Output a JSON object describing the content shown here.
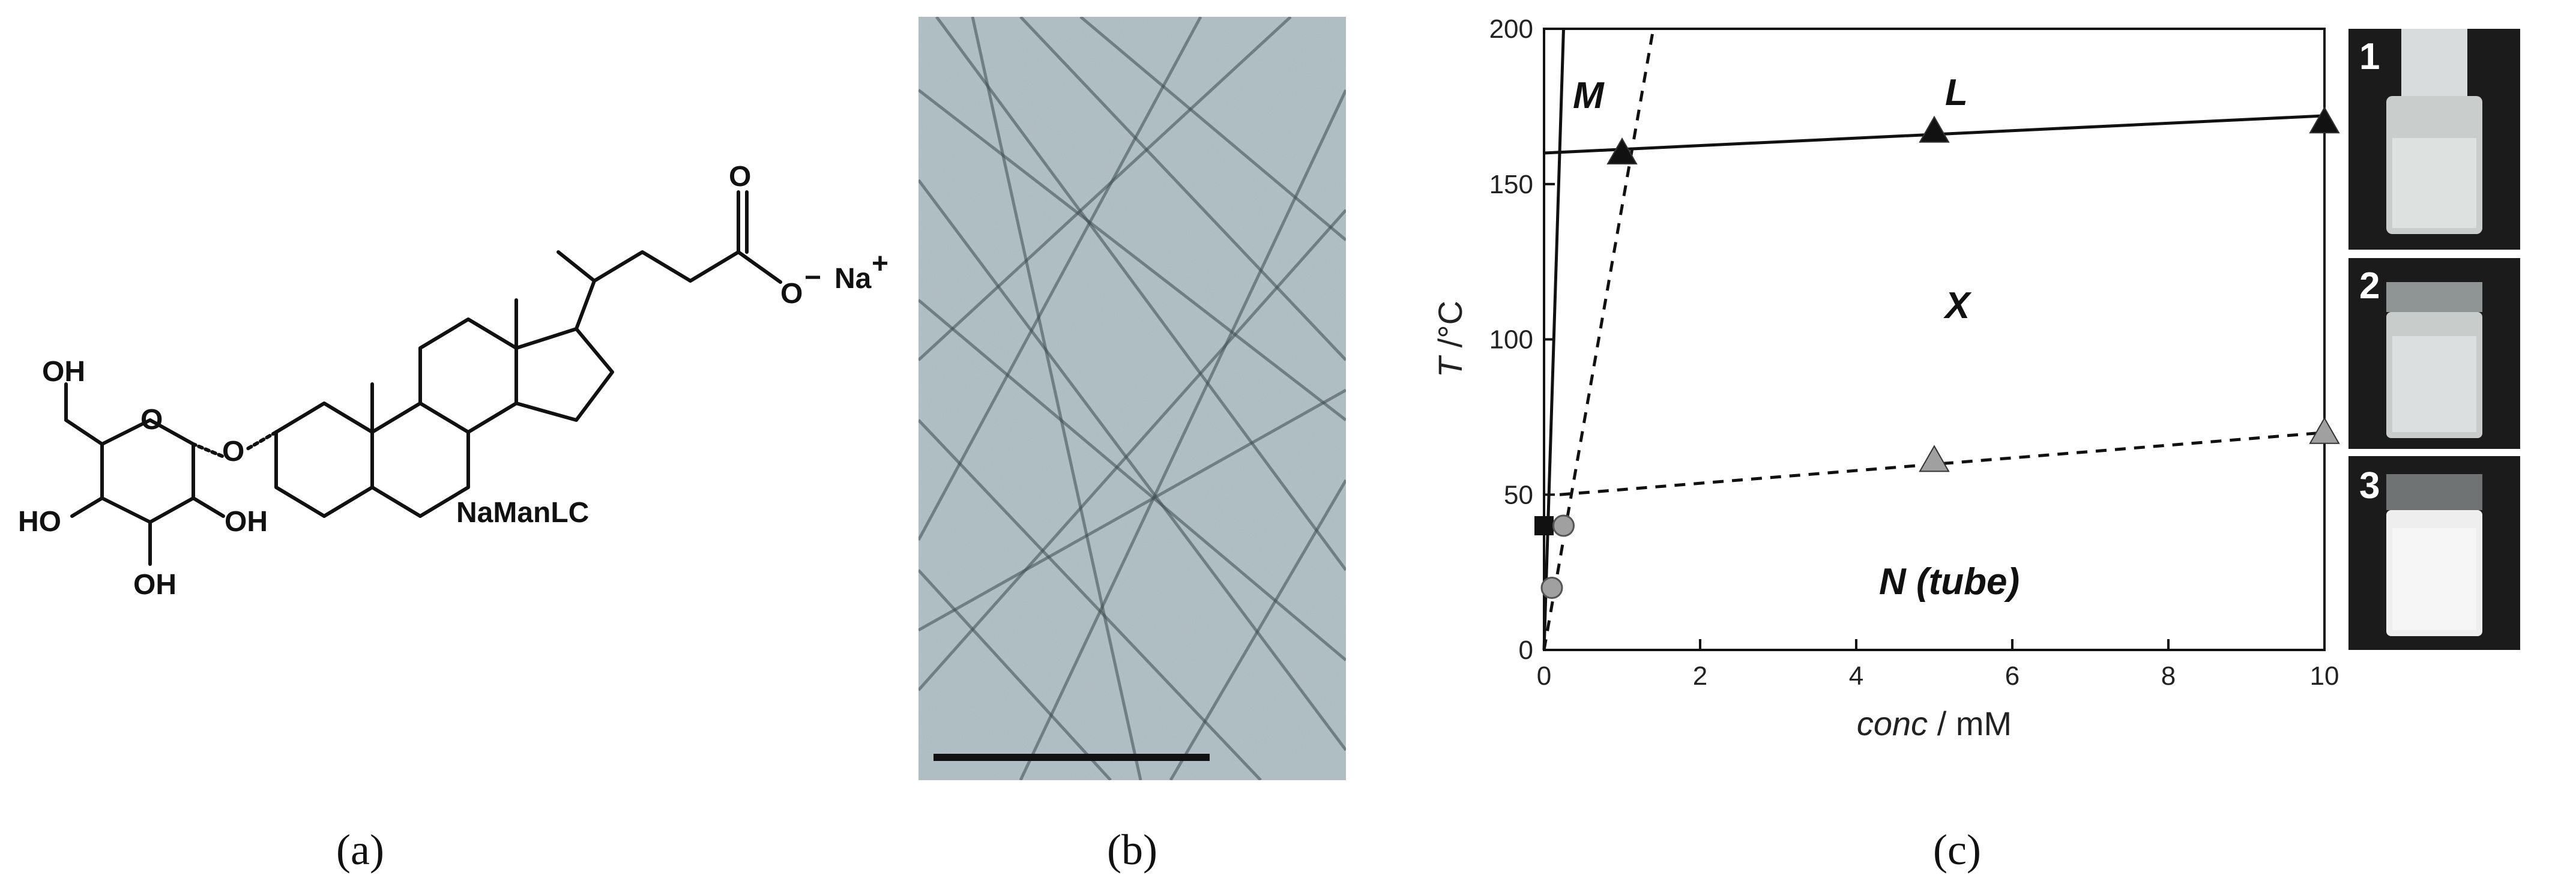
{
  "figure": {
    "panel_labels": {
      "a": "(a)",
      "b": "(b)",
      "c": "(c)"
    },
    "panel_a": {
      "compound_name": "NaManLC",
      "counter_ion": "Na",
      "counter_ion_charge": "+",
      "carboxylate_o": "O",
      "carboxylate_o_charge": "−",
      "carbonyl_o": "O",
      "ring_o": "O",
      "glycosidic_o": "O",
      "oh_top": "OH",
      "oh_left": "HO",
      "oh_right": "OH",
      "oh_bottom": "OH"
    },
    "panel_b": {
      "image_description_icon": "cryo-tem-image",
      "scale_bar": true
    },
    "panel_c": {
      "photos": [
        {
          "label": "1",
          "appearance": "clear-solution"
        },
        {
          "label": "2",
          "appearance": "clear-solution"
        },
        {
          "label": "3",
          "appearance": "turbid-white"
        }
      ]
    }
  },
  "chart_data": {
    "type": "scatter",
    "xlabel_italic": "conc",
    "xlabel_unit": " / mM",
    "ylabel_italic": "T",
    "ylabel_unit": " /°C",
    "xlim": [
      0,
      10
    ],
    "ylim": [
      0,
      200
    ],
    "xticks": [
      0,
      2,
      4,
      6,
      8,
      10
    ],
    "yticks": [
      0,
      50,
      100,
      150,
      200
    ],
    "phase_labels": {
      "M": "M",
      "L": "L",
      "X": "X",
      "N": "N (tube)"
    },
    "series": [
      {
        "marker": "black-triangle",
        "points": [
          {
            "x": 1,
            "y": 160
          },
          {
            "x": 5,
            "y": 167
          },
          {
            "x": 10,
            "y": 170
          }
        ]
      },
      {
        "marker": "gray-triangle",
        "points": [
          {
            "x": 5,
            "y": 61
          },
          {
            "x": 10,
            "y": 70
          }
        ]
      },
      {
        "marker": "black-square",
        "points": [
          {
            "x": 0,
            "y": 40
          }
        ]
      },
      {
        "marker": "gray-circle",
        "points": [
          {
            "x": 0.25,
            "y": 40
          },
          {
            "x": 0.1,
            "y": 20
          }
        ]
      }
    ],
    "lines": [
      {
        "style": "solid",
        "points": [
          {
            "x": 0,
            "y": 160
          },
          {
            "x": 10,
            "y": 172
          }
        ]
      },
      {
        "style": "solid",
        "points": [
          {
            "x": 0,
            "y": 0
          },
          {
            "x": 0.25,
            "y": 200
          }
        ]
      },
      {
        "style": "dashed",
        "points": [
          {
            "x": 0,
            "y": 0
          },
          {
            "x": 1.4,
            "y": 200
          }
        ]
      },
      {
        "style": "dashed",
        "points": [
          {
            "x": 0.2,
            "y": 50
          },
          {
            "x": 10,
            "y": 70
          }
        ]
      }
    ],
    "colors": {
      "black": "#111111",
      "gray": "#a0a0a0"
    }
  }
}
